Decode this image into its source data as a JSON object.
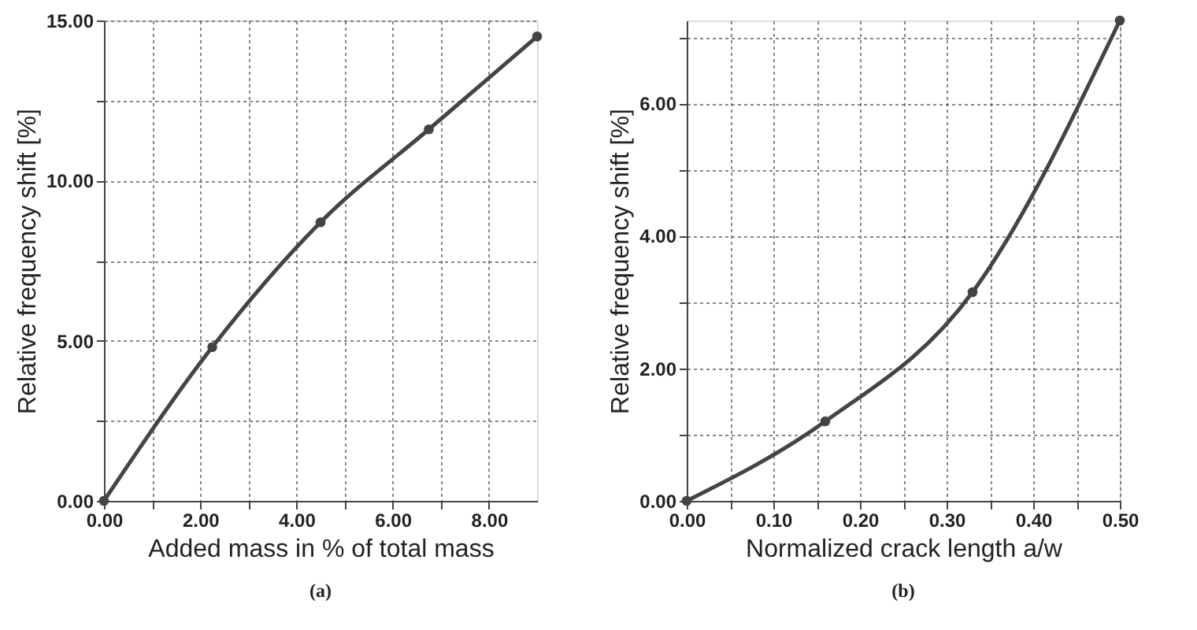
{
  "chart_data": [
    {
      "type": "line",
      "xlabel": "Added mass in % of total mass",
      "ylabel": "Relative frequency shift [%]",
      "annotations": [
        "(a)"
      ],
      "x": [
        0,
        2.25,
        4.5,
        6.75,
        9
      ],
      "series": [
        {
          "color": "#444444",
          "values": [
            0,
            4.8,
            8.7,
            11.6,
            14.5
          ]
        }
      ],
      "xlim": [
        0,
        9
      ],
      "ylim": [
        0,
        15
      ],
      "xticks": [
        {
          "value": 0,
          "label": "0.00"
        },
        {
          "value": 1,
          "label": null
        },
        {
          "value": 2,
          "label": "2.00"
        },
        {
          "value": 3,
          "label": null
        },
        {
          "value": 4,
          "label": "4.00"
        },
        {
          "value": 5,
          "label": null
        },
        {
          "value": 6,
          "label": "6.00"
        },
        {
          "value": 7,
          "label": null
        },
        {
          "value": 8,
          "label": "8.00"
        }
      ],
      "yticks": [
        {
          "value": 0,
          "label": "0.00"
        },
        {
          "value": 2.5,
          "label": null
        },
        {
          "value": 5,
          "label": "5.00"
        },
        {
          "value": 7.5,
          "label": null
        },
        {
          "value": 10,
          "label": "10.00"
        },
        {
          "value": 12.5,
          "label": null
        },
        {
          "value": 15,
          "label": "15.00"
        }
      ],
      "grid": true,
      "marker": "circle",
      "line_style": "solid"
    },
    {
      "type": "line",
      "xlabel": "Normalized crack length a/w",
      "ylabel": "Relative frequency shift [%]",
      "annotations": [
        "(b)"
      ],
      "x": [
        0,
        0.16,
        0.33,
        0.5
      ],
      "series": [
        {
          "color": "#444444",
          "values": [
            0,
            1.2,
            3.15,
            7.25
          ]
        }
      ],
      "xlim": [
        0,
        0.5
      ],
      "ylim": [
        0,
        7.25
      ],
      "xticks": [
        {
          "value": 0,
          "label": "0.00"
        },
        {
          "value": 0.05,
          "label": null
        },
        {
          "value": 0.1,
          "label": "0.10"
        },
        {
          "value": 0.15,
          "label": null
        },
        {
          "value": 0.2,
          "label": "0.20"
        },
        {
          "value": 0.25,
          "label": null
        },
        {
          "value": 0.3,
          "label": "0.30"
        },
        {
          "value": 0.35,
          "label": null
        },
        {
          "value": 0.4,
          "label": "0.40"
        },
        {
          "value": 0.45,
          "label": null
        },
        {
          "value": 0.5,
          "label": "0.50"
        }
      ],
      "yticks": [
        {
          "value": 0,
          "label": "0.00"
        },
        {
          "value": 1,
          "label": null
        },
        {
          "value": 2,
          "label": "2.00"
        },
        {
          "value": 3,
          "label": null
        },
        {
          "value": 4,
          "label": "4.00"
        },
        {
          "value": 5,
          "label": null
        },
        {
          "value": 6,
          "label": "6.00"
        },
        {
          "value": 7,
          "label": null
        }
      ],
      "grid": true,
      "marker": "circle",
      "line_style": "solid"
    }
  ]
}
